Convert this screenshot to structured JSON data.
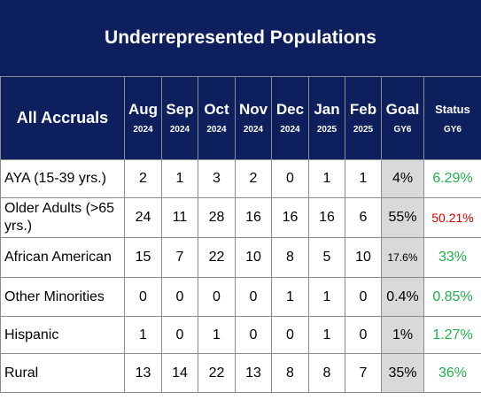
{
  "title": "Underrepresented Populations",
  "header": {
    "row_label": "All Accruals",
    "months": [
      {
        "month": "Aug",
        "year": "2024"
      },
      {
        "month": "Sep",
        "year": "2024"
      },
      {
        "month": "Oct",
        "year": "2024"
      },
      {
        "month": "Nov",
        "year": "2024"
      },
      {
        "month": "Dec",
        "year": "2024"
      },
      {
        "month": "Jan",
        "year": "2025"
      },
      {
        "month": "Feb",
        "year": "2025"
      }
    ],
    "goal": {
      "label": "Goal",
      "sub": "GY6"
    },
    "status": {
      "label": "Status",
      "sub": "GY6"
    }
  },
  "colors": {
    "header_bg": "#0d1f5c",
    "goal_bg": "#d9d9d9",
    "good": "#22b14c",
    "bad": "#e00000"
  },
  "rows": [
    {
      "label": "AYA (15-39 yrs.)",
      "values": [
        "2",
        "1",
        "3",
        "2",
        "0",
        "1",
        "1"
      ],
      "goal": "4%",
      "status": "6.29%",
      "status_color": "green"
    },
    {
      "label": "Older Adults (>65 yrs.)",
      "values": [
        "24",
        "11",
        "28",
        "16",
        "16",
        "16",
        "6"
      ],
      "goal": "55%",
      "status": "50.21%",
      "status_color": "red"
    },
    {
      "label": "African American",
      "values": [
        "15",
        "7",
        "22",
        "10",
        "8",
        "5",
        "10"
      ],
      "goal": "17.6%",
      "status": "33%",
      "status_color": "green"
    },
    {
      "label": "Other Minorities",
      "values": [
        "0",
        "0",
        "0",
        "0",
        "1",
        "1",
        "0"
      ],
      "goal": "0.4%",
      "status": "0.85%",
      "status_color": "green"
    },
    {
      "label": "Hispanic",
      "values": [
        "1",
        "0",
        "1",
        "0",
        "0",
        "1",
        "0"
      ],
      "goal": "1%",
      "status": "1.27%",
      "status_color": "green"
    },
    {
      "label": "Rural",
      "values": [
        "13",
        "14",
        "22",
        "13",
        "8",
        "8",
        "7"
      ],
      "goal": "35%",
      "status": "36%",
      "status_color": "green"
    }
  ]
}
